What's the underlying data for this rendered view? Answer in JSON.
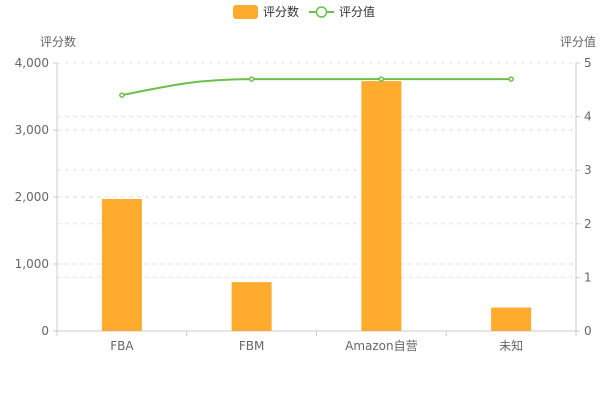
{
  "chart_data": {
    "type": "bar",
    "categories": [
      "FBA",
      "FBM",
      "Amazon自营",
      "未知"
    ],
    "series": [
      {
        "name": "评分数",
        "type": "bar",
        "axis": "left",
        "values": [
          1970,
          730,
          3730,
          350
        ],
        "color": "#FFAC2E"
      },
      {
        "name": "评分值",
        "type": "line",
        "axis": "right",
        "values": [
          4.4,
          4.7,
          4.7,
          4.7
        ],
        "color": "#6CC04A"
      }
    ],
    "y_left": {
      "label": "评分数",
      "min": 0,
      "max": 4000,
      "ticks": [
        0,
        1000,
        2000,
        3000,
        4000
      ],
      "tick_labels": [
        "0",
        "1,000",
        "2,000",
        "3,000",
        "4,000"
      ]
    },
    "y_right": {
      "label": "评分值",
      "min": 0,
      "max": 5,
      "ticks": [
        0,
        1,
        2,
        3,
        4,
        5
      ],
      "tick_labels": [
        "0",
        "1",
        "2",
        "3",
        "4",
        "5"
      ]
    },
    "grid": true,
    "legend_position": "top-center",
    "title": ""
  }
}
